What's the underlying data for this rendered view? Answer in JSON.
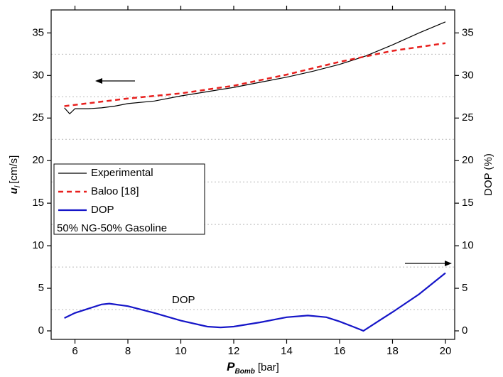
{
  "chart_data": {
    "type": "line",
    "xlabel": {
      "symbol": "P",
      "subscript": "Bomb",
      "unit": "[bar]"
    },
    "ylabel": {
      "symbol": "u",
      "subscript": "l",
      "unit": "[cm/s]"
    },
    "y2label": "DOP (%)",
    "annotation": "DOP",
    "legend_note": "50% NG-50% Gasoline",
    "legend": "center-left",
    "xlim": [
      5.1,
      20.35
    ],
    "ylim": [
      -1,
      37.7
    ],
    "y2lim": [
      -1,
      37.7
    ],
    "xticks": [
      6,
      8,
      10,
      12,
      14,
      16,
      18,
      20
    ],
    "yticks": [
      0,
      5,
      10,
      15,
      20,
      25,
      30,
      35
    ],
    "y2ticks": [
      0,
      5,
      10,
      15,
      20,
      25,
      30,
      35
    ],
    "y_minor_grid": [
      2.5,
      7.5,
      12.5,
      17.5,
      22.5,
      27.5,
      32.5
    ],
    "series": [
      {
        "name": "Experimental",
        "color": "#000000",
        "style": "solid",
        "x": [
          5.6,
          5.8,
          6,
          6.5,
          7,
          7.5,
          8,
          9,
          10,
          11,
          12,
          13,
          14,
          15,
          16,
          17,
          18,
          19,
          20
        ],
        "values": [
          26.2,
          25.5,
          26.1,
          26.1,
          26.2,
          26.4,
          26.7,
          27.0,
          27.6,
          28.1,
          28.6,
          29.2,
          29.8,
          30.5,
          31.3,
          32.3,
          33.6,
          35.0,
          36.3
        ]
      },
      {
        "name": "Baloo [18]",
        "color": "#e8201e",
        "style": "dashed",
        "x": [
          5.6,
          8,
          10,
          12,
          14,
          16,
          18,
          20
        ],
        "values": [
          26.4,
          27.3,
          27.9,
          28.8,
          30.1,
          31.6,
          32.9,
          33.8
        ]
      },
      {
        "name": "DOP",
        "color": "#1515c8",
        "style": "solid",
        "axis": "y2",
        "x": [
          5.6,
          6,
          7,
          7.3,
          8,
          9,
          10,
          11,
          11.5,
          12,
          13,
          14,
          14.8,
          15.5,
          16,
          16.5,
          16.9,
          17.5,
          18,
          19,
          20
        ],
        "values": [
          1.5,
          2.1,
          3.1,
          3.2,
          2.9,
          2.1,
          1.2,
          0.5,
          0.4,
          0.5,
          1.0,
          1.6,
          1.8,
          1.6,
          1.1,
          0.5,
          0.0,
          1.2,
          2.2,
          4.3,
          6.8
        ]
      }
    ]
  }
}
